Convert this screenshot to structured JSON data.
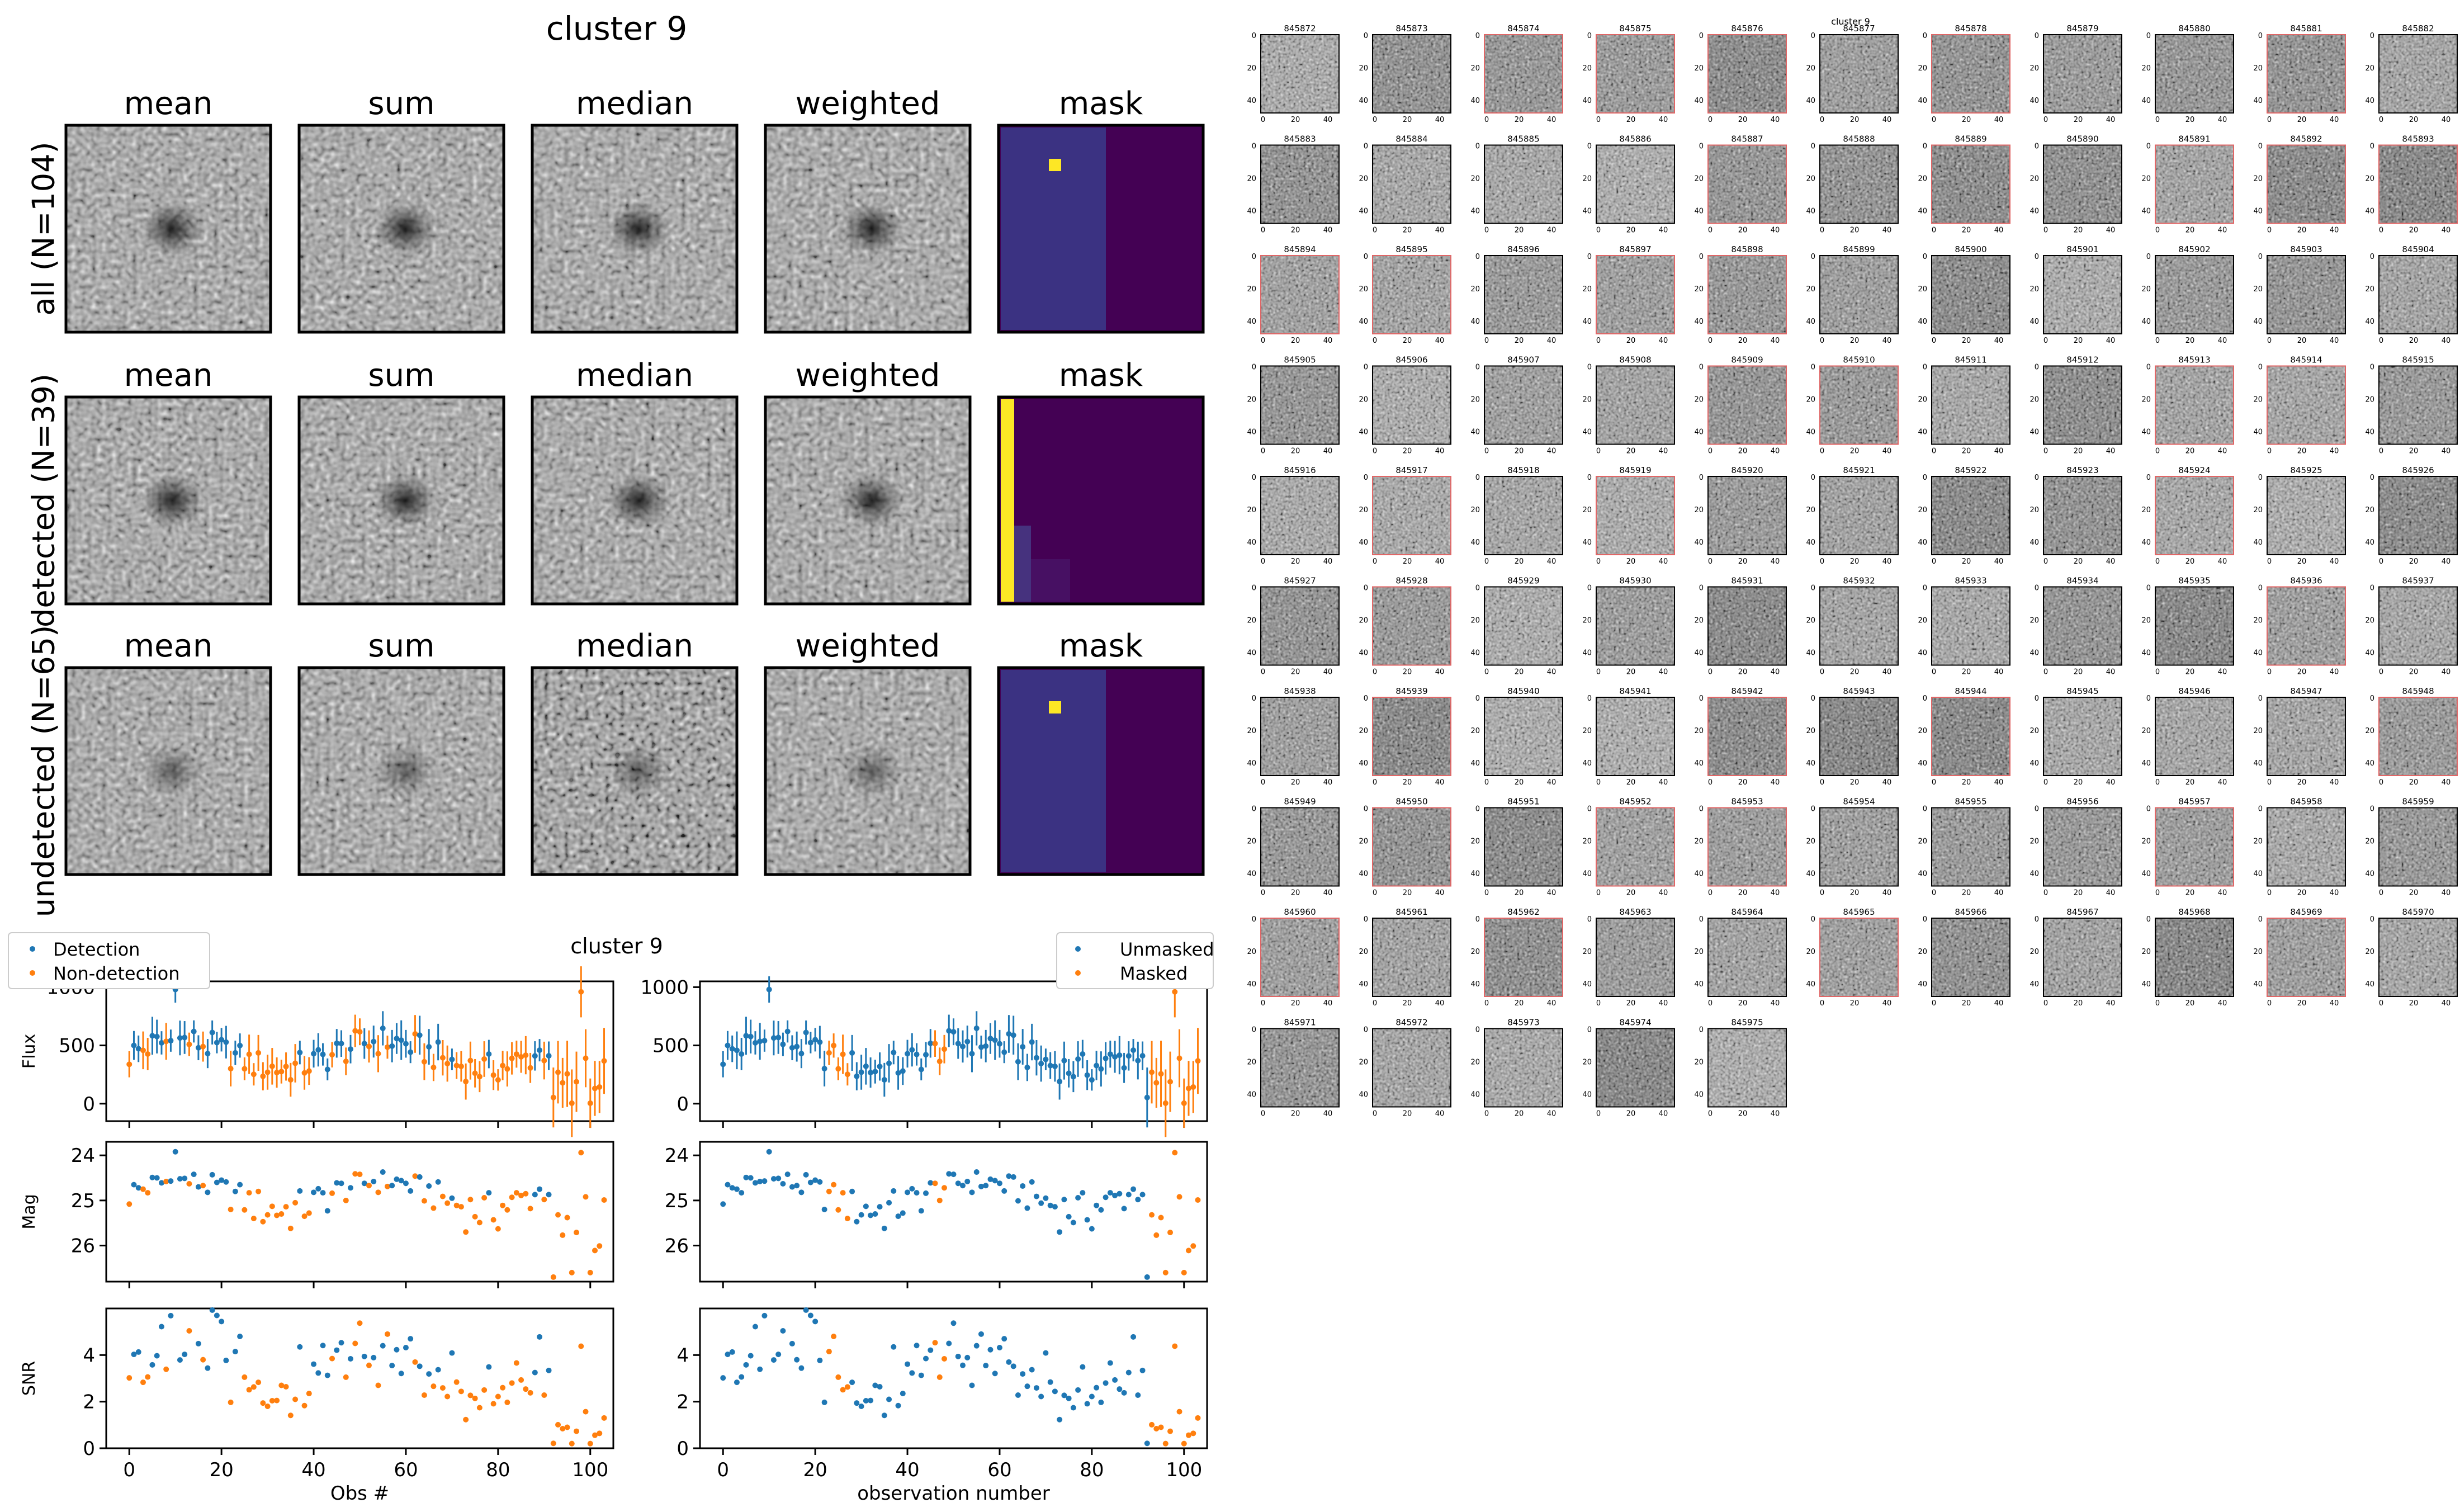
{
  "figure_title": "cluster 9",
  "stamp_columns": [
    "mean",
    "sum",
    "median",
    "weighted",
    "mask"
  ],
  "stamp_rows": [
    "all (N=104)",
    "detected (N=39)",
    "undetected (N=65)"
  ],
  "lightcurve_title": "cluster 9",
  "legend_left": [
    "Detection",
    "Non-detection"
  ],
  "legend_right": [
    "Unmasked",
    "Masked"
  ],
  "grid_header": "cluster 9",
  "colors": {
    "blue": "#1f77b4",
    "orange": "#ff7f0e",
    "mask_dark": "#440154",
    "mask_mid": "#3b3282",
    "mask_yellow": "#fde725",
    "red_frame": "#e06666"
  },
  "chart_data": [
    {
      "type": "scatter",
      "panel": "Flux (left)",
      "title": "cluster 9",
      "ylabel": "Flux",
      "xlabel": "",
      "xlim": [
        -5,
        105
      ],
      "ylim": [
        -150,
        1050
      ],
      "yticks": [
        0,
        500,
        1000
      ],
      "series_names": [
        "Detection",
        "Non-detection"
      ],
      "note": "104 observations; series: blue = Detection, orange = Non-detection; values approximated",
      "data_ref": "obs"
    },
    {
      "type": "scatter",
      "panel": "Mag (left)",
      "ylabel": "Mag",
      "ylim": [
        26.8,
        23.7
      ],
      "yticks": [
        24,
        25,
        26
      ],
      "data_ref": "obs"
    },
    {
      "type": "scatter",
      "panel": "SNR (left)",
      "ylabel": "SNR",
      "xlabel": "Obs #",
      "ylim": [
        0,
        6
      ],
      "yticks": [
        0,
        2,
        4
      ],
      "xticks": [
        0,
        20,
        40,
        60,
        80,
        100
      ],
      "data_ref": "obs"
    },
    {
      "type": "scatter",
      "panel": "Flux (right)",
      "ylabel": "",
      "ylim": [
        -150,
        1050
      ],
      "yticks": [
        0,
        500,
        1000
      ],
      "series_names": [
        "Unmasked",
        "Masked"
      ],
      "data_ref": "obs"
    },
    {
      "type": "scatter",
      "panel": "Mag (right)",
      "ylim": [
        26.8,
        23.7
      ],
      "yticks": [
        24,
        25,
        26
      ],
      "data_ref": "obs"
    },
    {
      "type": "scatter",
      "panel": "SNR (right)",
      "xlabel": "observation number",
      "ylim": [
        0,
        6
      ],
      "yticks": [
        0,
        2,
        4
      ],
      "xticks": [
        0,
        20,
        40,
        60,
        80,
        100
      ],
      "data_ref": "obs"
    }
  ],
  "stamp_grid": {
    "ids": [
      "845872",
      "845873",
      "845874",
      "845875",
      "845876",
      "845877",
      "845878",
      "845879",
      "845880",
      "845881",
      "845882",
      "845883",
      "845884",
      "845885",
      "845886",
      "845887",
      "845888",
      "845889",
      "845890",
      "845891",
      "845892",
      "845893",
      "845894",
      "845895",
      "845896",
      "845897",
      "845898",
      "845899",
      "845900",
      "845901",
      "845902",
      "845903",
      "845904",
      "845905",
      "845906",
      "845907",
      "845908",
      "845909",
      "845910",
      "845911",
      "845912",
      "845913",
      "845914",
      "845915",
      "845916",
      "845917",
      "845918",
      "845919",
      "845920",
      "845921",
      "845922",
      "845923",
      "845924",
      "845925",
      "845926",
      "845927",
      "845928",
      "845929",
      "845930",
      "845931",
      "845932",
      "845933",
      "845934",
      "845935",
      "845936",
      "845937",
      "845938",
      "845939",
      "845940",
      "845941",
      "845942",
      "845943",
      "845944",
      "845945",
      "845946",
      "845947",
      "845948",
      "845949",
      "845950",
      "845951",
      "845952",
      "845953",
      "845954",
      "845955",
      "845956",
      "845957",
      "845958",
      "845959",
      "845960",
      "845961",
      "845962",
      "845963",
      "845964",
      "845965",
      "845966",
      "845967",
      "845968",
      "845969",
      "845970",
      "845971",
      "845972",
      "845973",
      "845974",
      "845975"
    ],
    "red_frames": [
      "845874",
      "845875",
      "845876",
      "845878",
      "845881",
      "845887",
      "845889",
      "845891",
      "845892",
      "845893",
      "845894",
      "845895",
      "845897",
      "845898",
      "845909",
      "845910",
      "845913",
      "845914",
      "845917",
      "845919",
      "845924",
      "845928",
      "845936",
      "845939",
      "845942",
      "845944",
      "845948",
      "845950",
      "845952",
      "845953",
      "845957",
      "845960",
      "845962",
      "845965",
      "845969"
    ],
    "axis_ticks_y": [
      "0",
      "20",
      "40"
    ],
    "axis_ticks_x": [
      "0",
      "20",
      "40"
    ]
  }
}
